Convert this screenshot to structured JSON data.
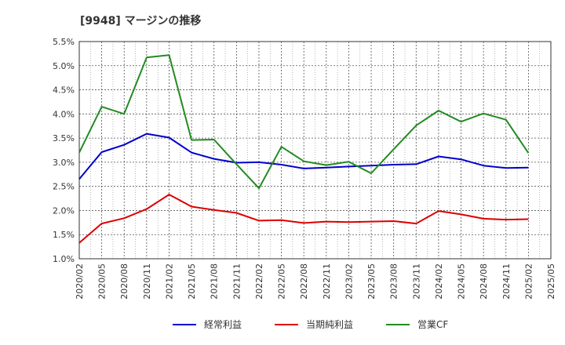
{
  "chart_data": {
    "type": "line",
    "title": "[9948]  マージンの推移",
    "x": [
      "2020/02",
      "2020/05",
      "2020/08",
      "2020/11",
      "2021/02",
      "2021/05",
      "2021/08",
      "2021/11",
      "2022/02",
      "2022/05",
      "2022/08",
      "2022/11",
      "2023/02",
      "2023/05",
      "2023/08",
      "2023/11",
      "2024/02",
      "2024/05",
      "2024/08",
      "2024/11",
      "2025/02"
    ],
    "x_ticks": [
      "2020/02",
      "2020/05",
      "2020/08",
      "2020/11",
      "2021/02",
      "2021/05",
      "2021/08",
      "2021/11",
      "2022/02",
      "2022/05",
      "2022/08",
      "2022/11",
      "2023/02",
      "2023/05",
      "2023/08",
      "2023/11",
      "2024/02",
      "2024/05",
      "2024/08",
      "2024/11",
      "2025/02",
      "2025/05"
    ],
    "y_ticks": [
      "5.5%",
      "5.0%",
      "4.5%",
      "4.0%",
      "3.5%",
      "3.0%",
      "2.5%",
      "2.0%",
      "1.5%",
      "1.0%"
    ],
    "ylim": [
      1.0,
      5.5
    ],
    "grid": true,
    "legend_position": "bottom",
    "series": [
      {
        "name": "経常利益",
        "color": "#0000cc",
        "values": [
          2.65,
          3.21,
          3.36,
          3.59,
          3.51,
          3.2,
          3.07,
          2.99,
          3.0,
          2.95,
          2.87,
          2.89,
          2.91,
          2.93,
          2.95,
          2.96,
          3.12,
          3.06,
          2.93,
          2.88,
          2.89
        ]
      },
      {
        "name": "当期純利益",
        "color": "#dd0000",
        "values": [
          1.33,
          1.73,
          1.84,
          2.03,
          2.33,
          2.08,
          2.01,
          1.95,
          1.79,
          1.8,
          1.74,
          1.77,
          1.76,
          1.77,
          1.78,
          1.73,
          1.99,
          1.92,
          1.83,
          1.81,
          1.82
        ]
      },
      {
        "name": "営業CF",
        "color": "#228b22",
        "values": [
          3.2,
          4.15,
          4.0,
          5.17,
          5.22,
          3.46,
          3.47,
          2.96,
          2.46,
          3.32,
          3.02,
          2.94,
          3.01,
          2.77,
          3.27,
          3.76,
          4.07,
          3.84,
          4.01,
          3.88,
          3.19
        ]
      }
    ]
  }
}
